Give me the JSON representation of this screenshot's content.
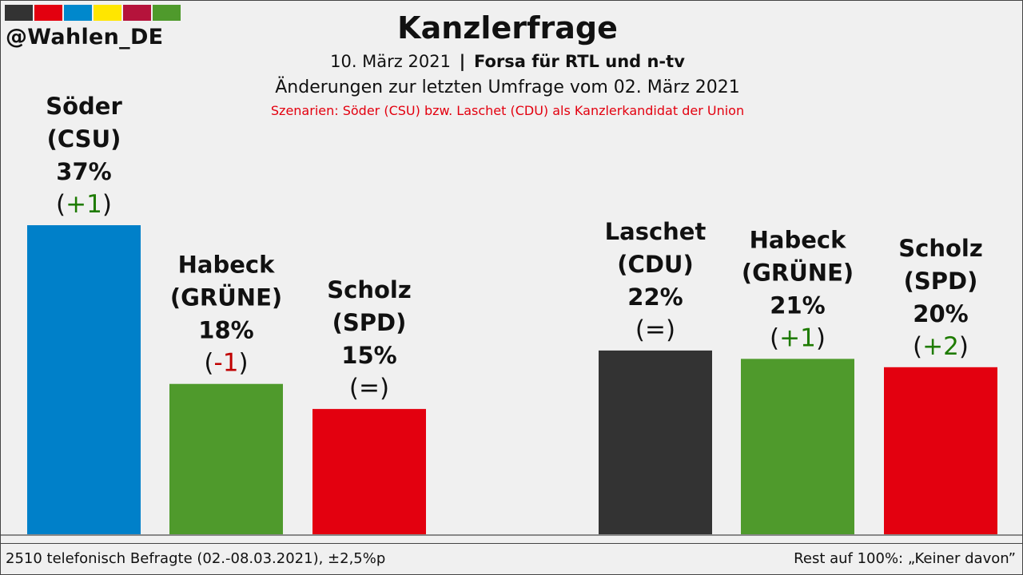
{
  "header": {
    "handle": "@Wahlen_DE",
    "flag_colors": [
      "#333333",
      "#e3000f",
      "#0088cc",
      "#ffe600",
      "#b5133b",
      "#4f9a2c"
    ],
    "title": "Kanzlerfrage",
    "date": "10. März 2021",
    "separator": "|",
    "institute": "Forsa für RTL und n-tv",
    "changes": "Änderungen zur letzten Umfrage vom 02. März 2021",
    "scenario": "Szenarien: Söder (CSU) bzw. Laschet (CDU) als Kanzlerkandidat der Union"
  },
  "chart_data": {
    "type": "bar",
    "title": "Kanzlerfrage",
    "ylabel": "",
    "ylim": [
      0,
      37
    ],
    "groups": [
      {
        "scenario": "Söder (CSU)",
        "bars": [
          {
            "name": "Söder",
            "party": "(CSU)",
            "value": 37,
            "value_label": "37%",
            "change": "(+1)",
            "change_sign": "plus",
            "color": "#0080c9"
          },
          {
            "name": "Habeck",
            "party": "(GRÜNE)",
            "value": 18,
            "value_label": "18%",
            "change": "(-1)",
            "change_sign": "minus",
            "color": "#4f9a2c"
          },
          {
            "name": "Scholz",
            "party": "(SPD)",
            "value": 15,
            "value_label": "15%",
            "change": "(=)",
            "change_sign": "equal",
            "color": "#e3000f"
          }
        ]
      },
      {
        "scenario": "Laschet (CDU)",
        "bars": [
          {
            "name": "Laschet",
            "party": "(CDU)",
            "value": 22,
            "value_label": "22%",
            "change": "(=)",
            "change_sign": "equal",
            "color": "#333333"
          },
          {
            "name": "Habeck",
            "party": "(GRÜNE)",
            "value": 21,
            "value_label": "21%",
            "change": "(+1)",
            "change_sign": "plus",
            "color": "#4f9a2c"
          },
          {
            "name": "Scholz",
            "party": "(SPD)",
            "value": 20,
            "value_label": "20%",
            "change": "(+2)",
            "change_sign": "plus",
            "color": "#e3000f"
          }
        ]
      }
    ],
    "change_colors": {
      "plus": "#1e7b00",
      "minus": "#c00000",
      "equal": "#111111"
    }
  },
  "footer": {
    "sample": "2510 telefonisch Befragte (02.-08.03.2021), ±2,5%p",
    "rest": "Rest auf 100%: „Keiner davon”"
  }
}
